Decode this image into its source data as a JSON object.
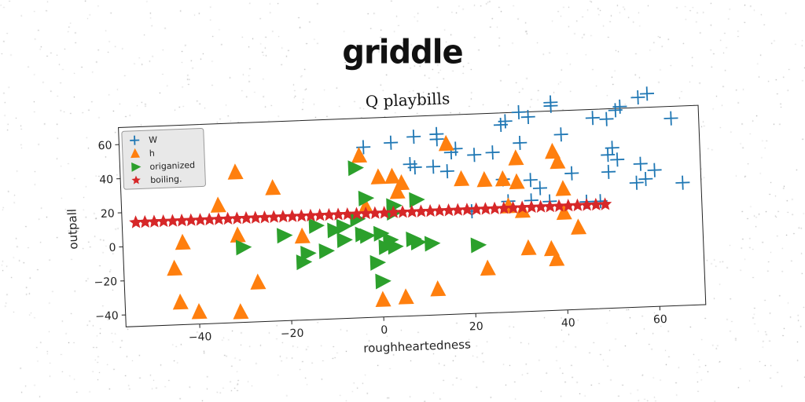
{
  "banner": "griddle",
  "chart_data": {
    "type": "scatter",
    "title": "Q playbills",
    "xlabel": "roughheartedness",
    "ylabel": "outpall",
    "xlim": [
      -56,
      70
    ],
    "ylim": [
      -47,
      70
    ],
    "xticks": [
      -40,
      -20,
      0,
      20,
      40,
      60
    ],
    "yticks": [
      -40,
      -20,
      0,
      20,
      40,
      60
    ],
    "grid": false,
    "legend_position": "top-left",
    "series": [
      {
        "name": "W",
        "marker": "plus",
        "color": "#1f77b4",
        "points": [
          [
            -3,
            53
          ],
          [
            3,
            55
          ],
          [
            8,
            58
          ],
          [
            13,
            59
          ],
          [
            13,
            56
          ],
          [
            16,
            48
          ],
          [
            17,
            50
          ],
          [
            21,
            46
          ],
          [
            25,
            47
          ],
          [
            27,
            63
          ],
          [
            28,
            65
          ],
          [
            31,
            70
          ],
          [
            33,
            67
          ],
          [
            31,
            52
          ],
          [
            38,
            73
          ],
          [
            38,
            75
          ],
          [
            40,
            56
          ],
          [
            47,
            65
          ],
          [
            50,
            64
          ],
          [
            52,
            69
          ],
          [
            53,
            71
          ],
          [
            57,
            76
          ],
          [
            59,
            78
          ],
          [
            64,
            63
          ],
          [
            50,
            43
          ],
          [
            51,
            47
          ],
          [
            52,
            40
          ],
          [
            42,
            33
          ],
          [
            50,
            33
          ],
          [
            57,
            37
          ],
          [
            56,
            26
          ],
          [
            58,
            28
          ],
          [
            60,
            33
          ],
          [
            66,
            25
          ],
          [
            7,
            42
          ],
          [
            8,
            40
          ],
          [
            12,
            40
          ],
          [
            15,
            37
          ],
          [
            27,
            31
          ],
          [
            33,
            30
          ],
          [
            35,
            25
          ],
          [
            20,
            13
          ],
          [
            28,
            18
          ],
          [
            33,
            18
          ],
          [
            37,
            17
          ],
          [
            45,
            16
          ],
          [
            48,
            16
          ]
        ]
      },
      {
        "name": "h",
        "marker": "triangle",
        "color": "#ff7f0e",
        "points": [
          [
            -43,
            1
          ],
          [
            -45,
            -14
          ],
          [
            -44,
            -34
          ],
          [
            -40,
            -40
          ],
          [
            -35,
            22
          ],
          [
            -31,
            41
          ],
          [
            -31,
            4
          ],
          [
            -31,
            -41
          ],
          [
            -27,
            -24
          ],
          [
            -23,
            31
          ],
          [
            -17,
            2
          ],
          [
            -4,
            48
          ],
          [
            -3,
            18
          ],
          [
            0,
            35
          ],
          [
            3,
            35
          ],
          [
            4,
            26
          ],
          [
            5,
            31
          ],
          [
            0,
            -37
          ],
          [
            5,
            -36
          ],
          [
            12,
            -32
          ],
          [
            23,
            -21
          ],
          [
            15,
            53
          ],
          [
            18,
            32
          ],
          [
            23,
            31
          ],
          [
            27,
            31
          ],
          [
            30,
            29
          ],
          [
            30,
            43
          ],
          [
            31,
            12
          ],
          [
            28,
            15
          ],
          [
            32,
            -10
          ],
          [
            37,
            -11
          ],
          [
            38,
            -17
          ],
          [
            38,
            46
          ],
          [
            39,
            40
          ],
          [
            40,
            24
          ],
          [
            40,
            10
          ],
          [
            43,
            1
          ]
        ]
      },
      {
        "name": "origanized",
        "marker": "triangle-right",
        "color": "#2ca02c",
        "points": [
          [
            -5,
            41
          ],
          [
            -3,
            23
          ],
          [
            8,
            21
          ],
          [
            3,
            18
          ],
          [
            -30,
            -3
          ],
          [
            -21,
            3
          ],
          [
            -16,
            -8
          ],
          [
            -12,
            -7
          ],
          [
            -8,
            7
          ],
          [
            -8,
            -1
          ],
          [
            -3,
            1
          ],
          [
            -4,
            2
          ],
          [
            0,
            2
          ],
          [
            1,
            -6
          ],
          [
            2,
            -2
          ],
          [
            3,
            -6
          ],
          [
            7,
            -2
          ],
          [
            8,
            -4
          ],
          [
            11,
            -5
          ],
          [
            21,
            -7
          ],
          [
            -1,
            -15
          ],
          [
            -14,
            8
          ],
          [
            -10,
            5
          ],
          [
            -5,
            11
          ],
          [
            3,
            14
          ],
          [
            0,
            -26
          ],
          [
            -17,
            -13
          ]
        ]
      },
      {
        "name": "boiling.",
        "marker": "star",
        "color": "#d62728",
        "points": [
          [
            -53,
            14
          ],
          [
            -51,
            14
          ],
          [
            -49,
            14
          ],
          [
            -47,
            14
          ],
          [
            -45,
            14
          ],
          [
            -43,
            14
          ],
          [
            -41,
            14
          ],
          [
            -39,
            14
          ],
          [
            -37,
            14
          ],
          [
            -35,
            14
          ],
          [
            -33,
            14
          ],
          [
            -31,
            14
          ],
          [
            -29,
            14
          ],
          [
            -27,
            14
          ],
          [
            -25,
            14
          ],
          [
            -23,
            14
          ],
          [
            -21,
            14
          ],
          [
            -19,
            14
          ],
          [
            -17,
            14
          ],
          [
            -15,
            14
          ],
          [
            -13,
            14
          ],
          [
            -11,
            14
          ],
          [
            -9,
            14
          ],
          [
            -7,
            14
          ],
          [
            -5,
            14
          ],
          [
            -3,
            14
          ],
          [
            -1,
            14
          ],
          [
            1,
            14
          ],
          [
            3,
            14
          ],
          [
            5,
            14
          ],
          [
            7,
            14
          ],
          [
            9,
            14
          ],
          [
            11,
            14
          ],
          [
            13,
            14
          ],
          [
            15,
            14
          ],
          [
            17,
            14
          ],
          [
            19,
            14
          ],
          [
            21,
            14
          ],
          [
            23,
            14
          ],
          [
            25,
            14
          ],
          [
            27,
            14
          ],
          [
            29,
            14
          ],
          [
            31,
            14
          ],
          [
            33,
            14
          ],
          [
            35,
            14
          ],
          [
            37,
            14
          ],
          [
            39,
            14
          ],
          [
            41,
            14
          ],
          [
            43,
            14
          ],
          [
            45,
            14
          ],
          [
            47,
            14
          ],
          [
            49,
            14
          ]
        ]
      }
    ]
  }
}
